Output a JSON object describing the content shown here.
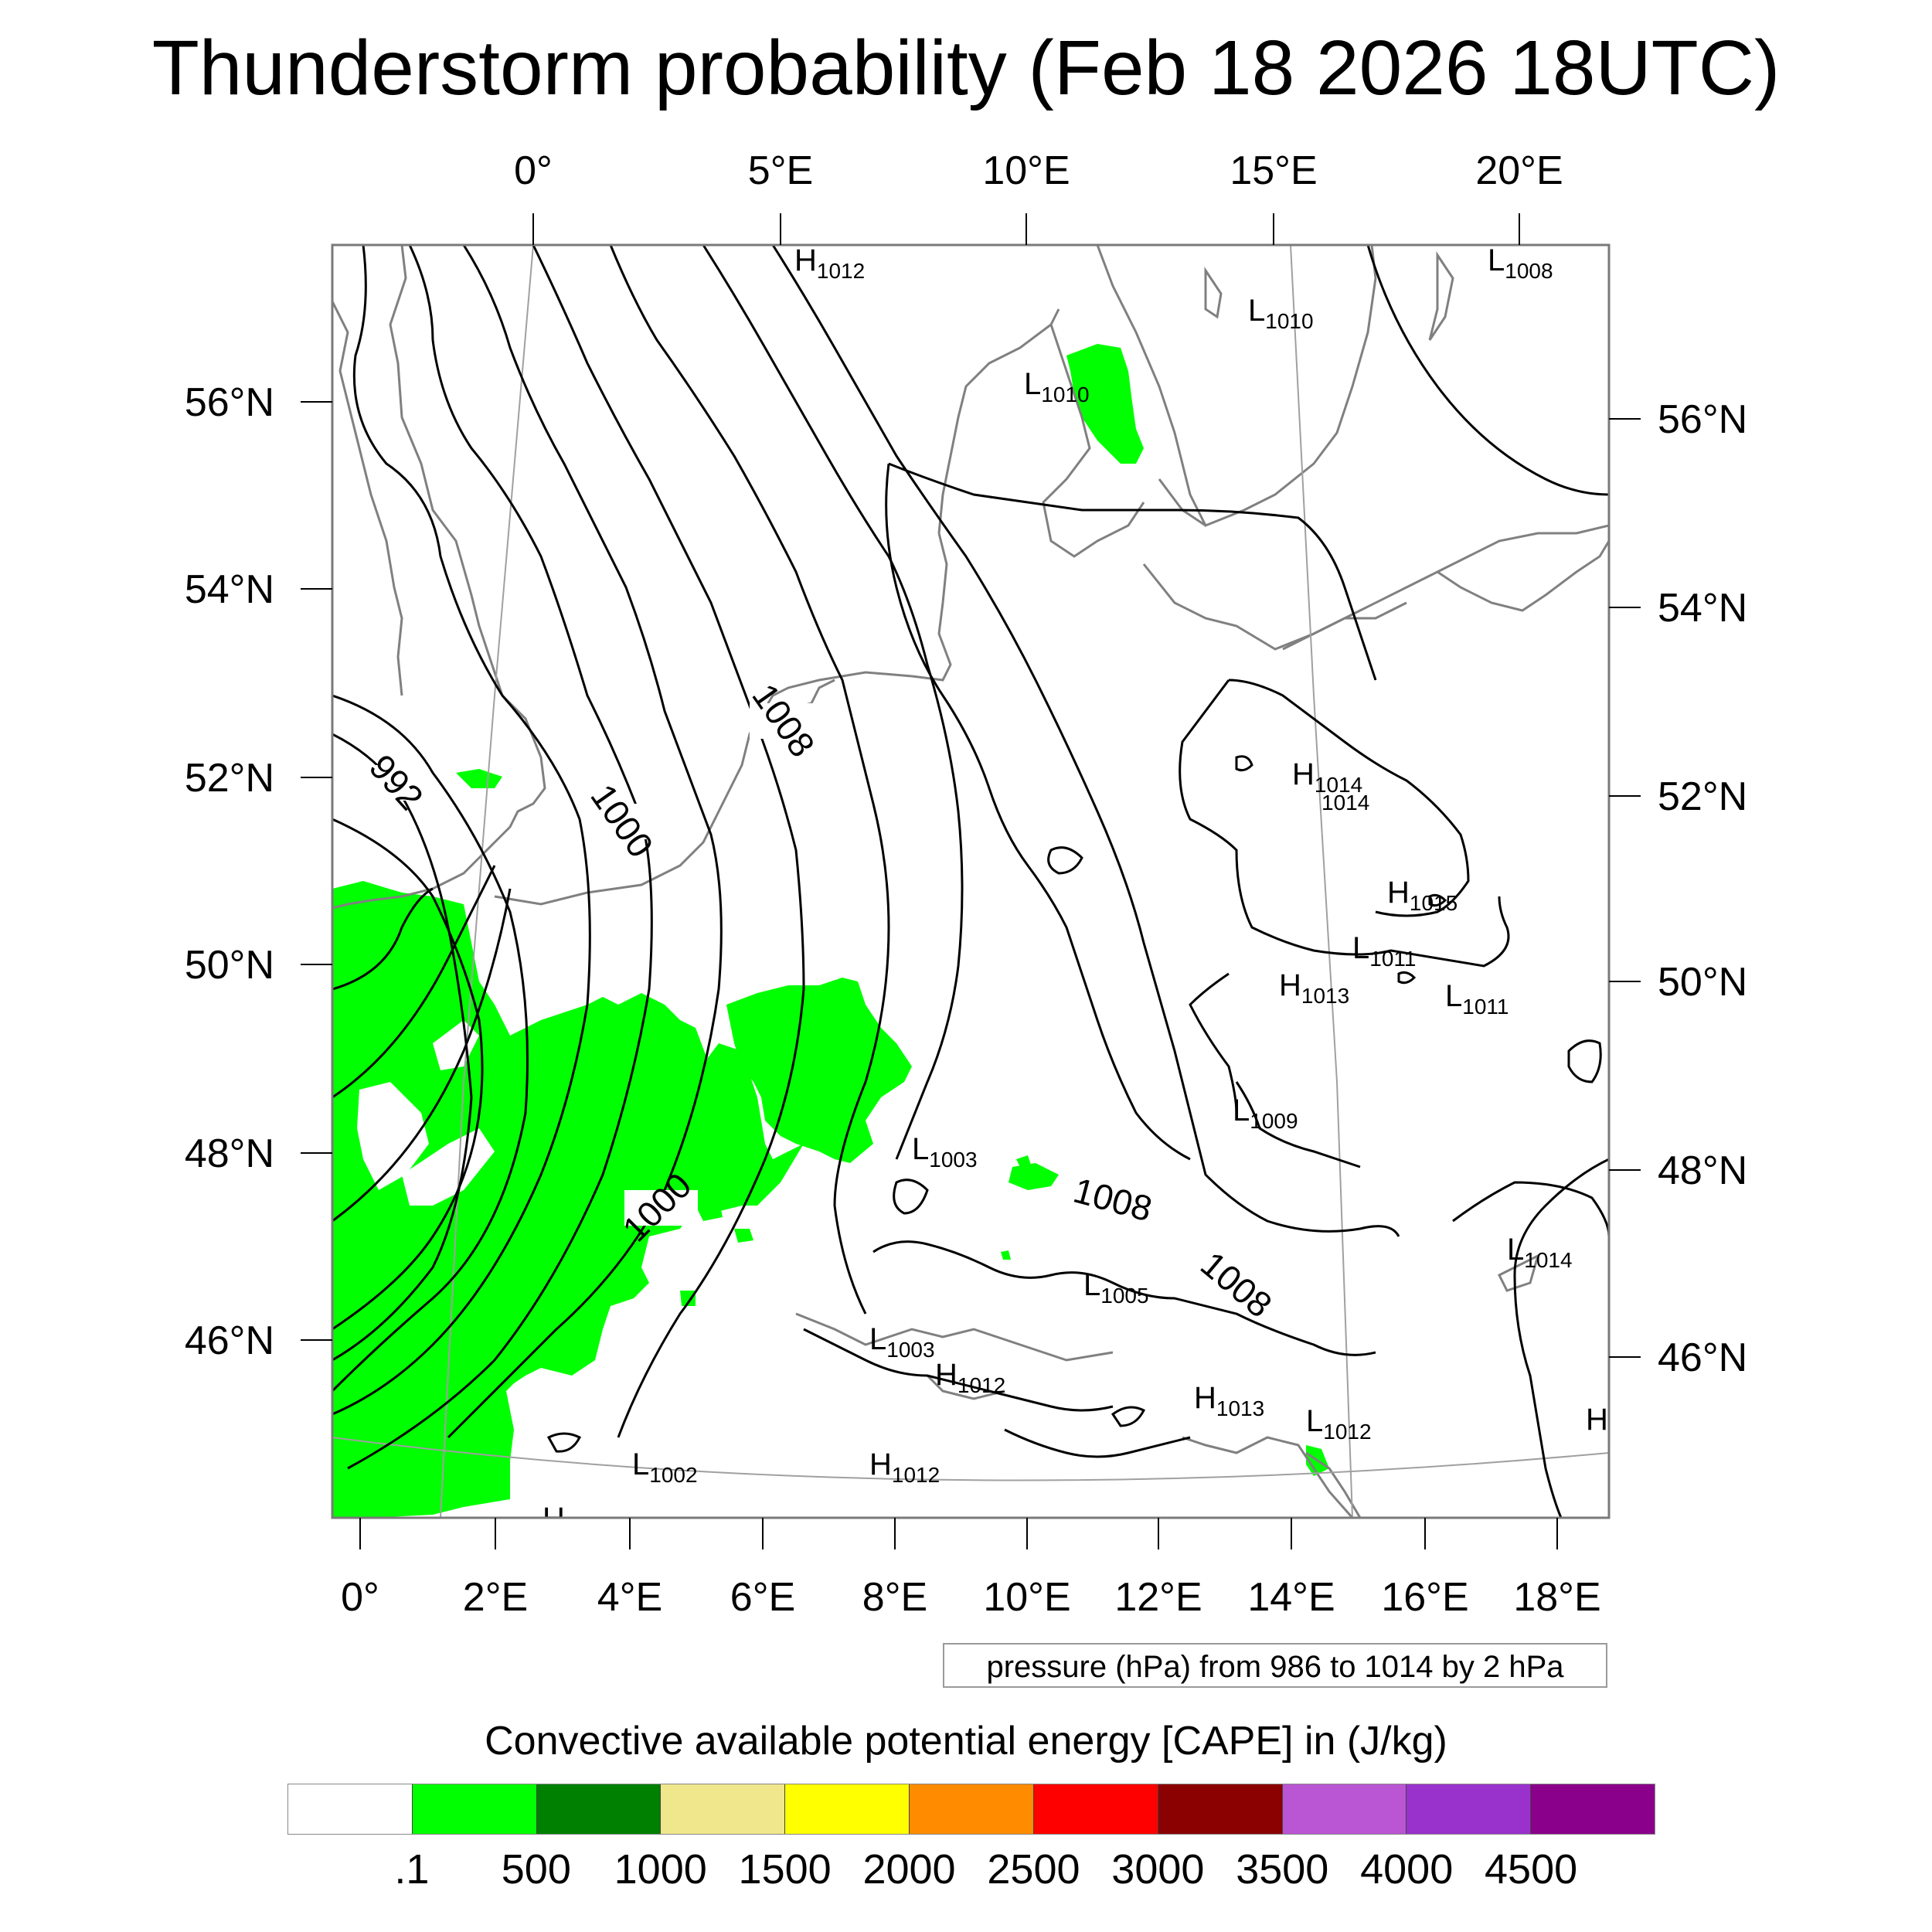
{
  "title": "Thunderstorm probability (Feb 18 2026 18UTC)",
  "top_lon_labels": [
    "0°",
    "5°E",
    "10°E",
    "15°E",
    "20°E"
  ],
  "bottom_lon_labels": [
    "0°",
    "2°E",
    "4°E",
    "6°E",
    "8°E",
    "10°E",
    "12°E",
    "14°E",
    "16°E",
    "18°E"
  ],
  "left_lat_labels": [
    "56°N",
    "54°N",
    "52°N",
    "50°N",
    "48°N",
    "46°N"
  ],
  "right_lat_labels": [
    "56°N",
    "54°N",
    "52°N",
    "50°N",
    "48°N",
    "46°N"
  ],
  "contour_labels": [
    "992",
    "1000",
    "1008",
    "1000",
    "1008",
    "1008"
  ],
  "pressure_centers": [
    {
      "type": "H",
      "value": "1012"
    },
    {
      "type": "L",
      "value": "1008"
    },
    {
      "type": "L",
      "value": "1010"
    },
    {
      "type": "L",
      "value": "1010"
    },
    {
      "type": "H",
      "value": "1014"
    },
    {
      "type": "",
      "value": "1014"
    },
    {
      "type": "H",
      "value": "1015"
    },
    {
      "type": "L",
      "value": "1011"
    },
    {
      "type": "H",
      "value": "1013"
    },
    {
      "type": "L",
      "value": "1011"
    },
    {
      "type": "L",
      "value": "1009"
    },
    {
      "type": "L",
      "value": "1003"
    },
    {
      "type": "L",
      "value": "1014"
    },
    {
      "type": "L",
      "value": "1005"
    },
    {
      "type": "L",
      "value": "1003"
    },
    {
      "type": "H",
      "value": "1012"
    },
    {
      "type": "H",
      "value": "1013"
    },
    {
      "type": "L",
      "value": "1012"
    },
    {
      "type": "H",
      "value": ""
    },
    {
      "type": "L",
      "value": "1002"
    },
    {
      "type": "H",
      "value": "1012"
    },
    {
      "type": "H",
      "value": ""
    }
  ],
  "info_box": "pressure (hPa) from 986 to 1014 by 2 hPa",
  "colorbar": {
    "title": "Convective available potential energy [CAPE] in (J/kg)",
    "ticks": [
      ".1",
      "500",
      "1000",
      "1500",
      "2000",
      "2500",
      "3000",
      "3500",
      "4000",
      "4500"
    ],
    "colors": [
      "#ffffff",
      "#00ff00",
      "#008000",
      "#f0e68c",
      "#ffff00",
      "#ff8c00",
      "#ff0000",
      "#8b0000",
      "#ba55d3",
      "#9932cc",
      "#8b008b"
    ]
  },
  "colors": {
    "cape_fill": "#00ff00",
    "isobar": "#000000",
    "coastline": "#808080",
    "graticule": "#a0a0a0"
  }
}
